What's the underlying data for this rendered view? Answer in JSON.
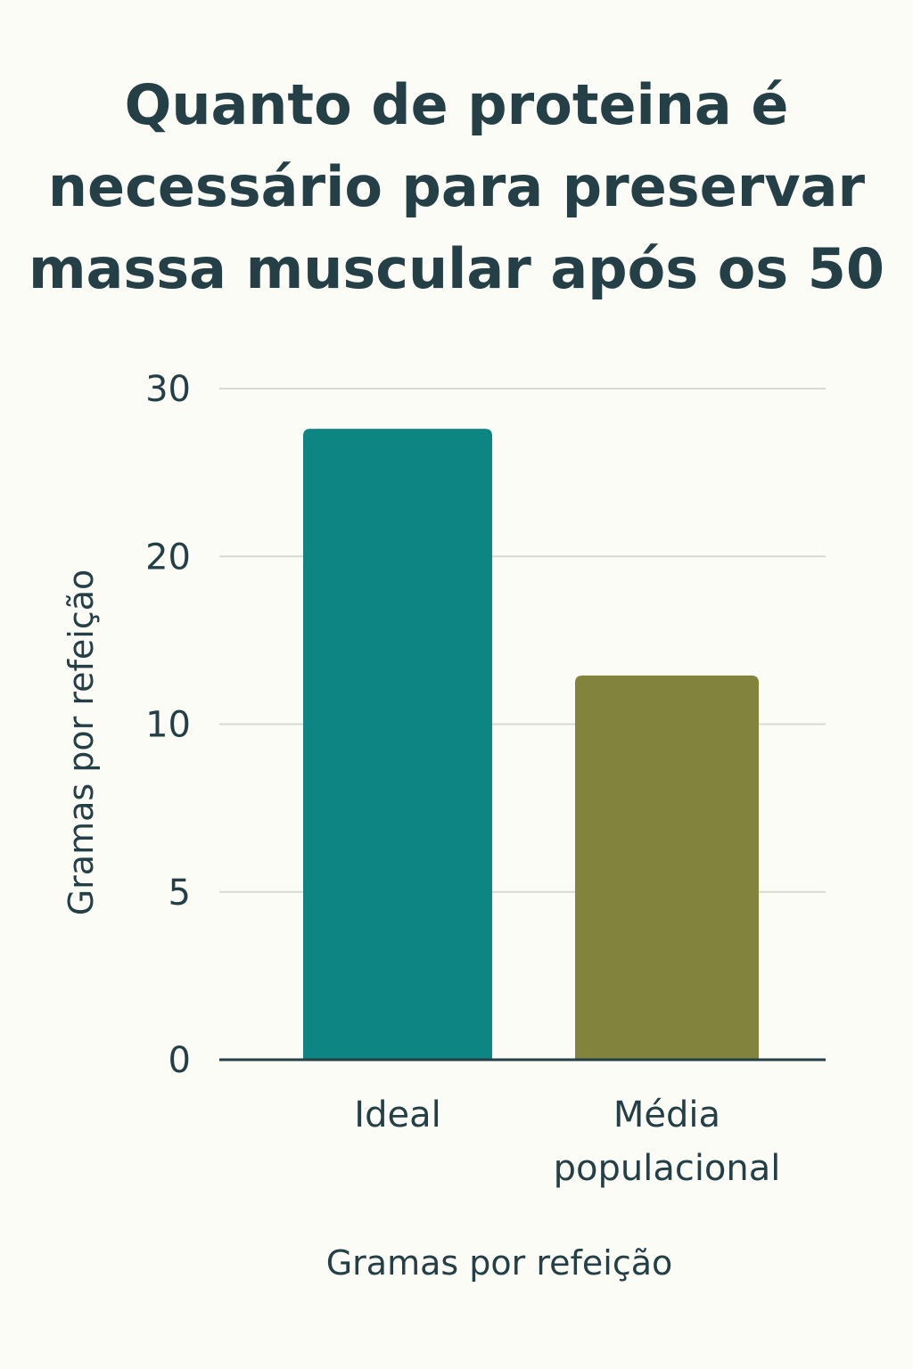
{
  "chart_data": {
    "type": "bar",
    "title_lines": [
      "Quanto de proteina é",
      "necessário para preservar",
      "massa muscular após os 50"
    ],
    "categories": [
      [
        "Ideal"
      ],
      [
        "Média",
        "populacional"
      ]
    ],
    "values": [
      27.6,
      12.9
    ],
    "colors": [
      "#0d8683",
      "#82843d"
    ],
    "y_ticks": [
      {
        "value": 0,
        "label": "0"
      },
      {
        "value": 5,
        "label": "5"
      },
      {
        "value": 10,
        "label": "10"
      },
      {
        "value": 20,
        "label": "20"
      },
      {
        "value": 30,
        "label": "30"
      }
    ],
    "xlabel": "Gramas por refeição",
    "ylabel": "Gramas por refeição",
    "ylim": [
      0,
      30
    ],
    "grid": true,
    "legend": false
  }
}
